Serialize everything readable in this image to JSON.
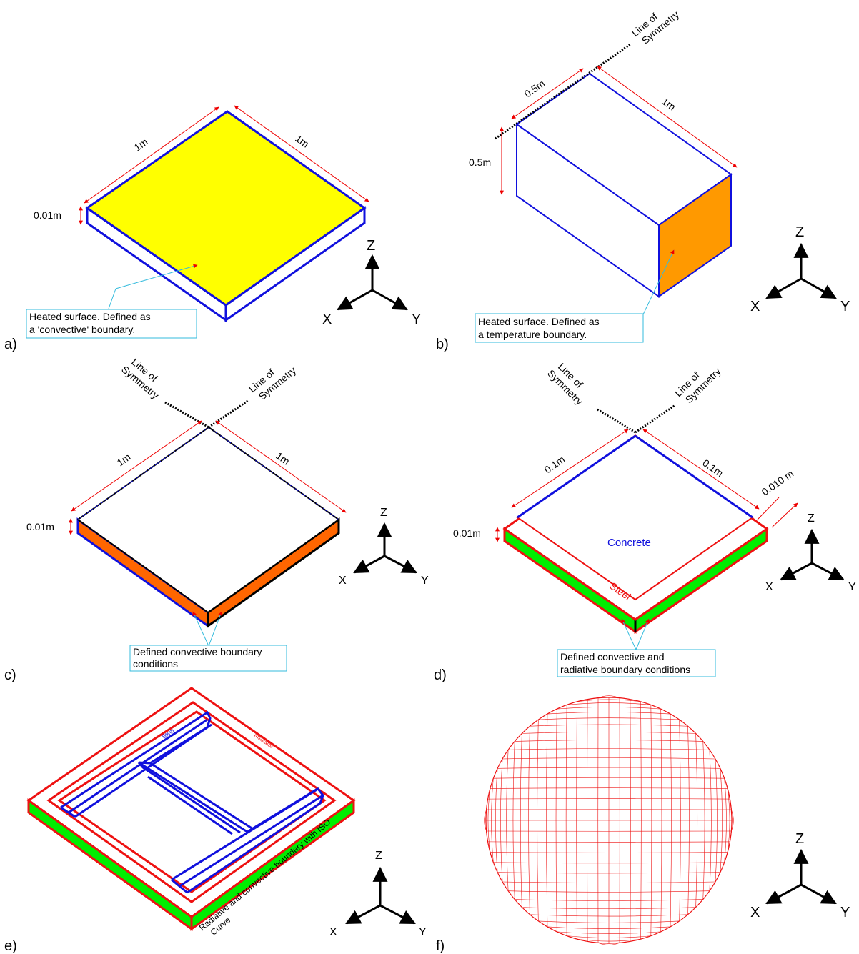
{
  "colors": {
    "edge_blue": "#1010dd",
    "edge_red": "#ee1111",
    "heated_yellow": "#ffff00",
    "heated_orange": "#ff9900",
    "side_orange": "#ff6600",
    "side_green": "#00ee00",
    "callout_border": "#33bbdd",
    "dim_red": "#ee0000"
  },
  "panels": {
    "a": {
      "label": "a)",
      "dim_left": "1m",
      "dim_right": "1m",
      "dim_thickness": "0.01m",
      "callout_line1": "Heated surface. Defined as",
      "callout_line2": "a 'convective' boundary.",
      "axis": {
        "z": "Z",
        "x": "X",
        "y": "Y"
      }
    },
    "b": {
      "label": "b)",
      "dim_top": "0.5m",
      "dim_right": "1m",
      "dim_height": "0.5m",
      "symmetry_line1": "Line of",
      "symmetry_line2": "Symmetry",
      "callout_line1": "Heated surface. Defined as",
      "callout_line2": "a temperature boundary.",
      "axis": {
        "z": "Z",
        "x": "X",
        "y": "Y"
      }
    },
    "c": {
      "label": "c)",
      "dim_left": "1m",
      "dim_right": "1m",
      "dim_thickness": "0.01m",
      "symmetry_left_line1": "Line of",
      "symmetry_left_line2": "Symmetry",
      "symmetry_right_line1": "Line of",
      "symmetry_right_line2": "Symmetry",
      "callout_line1": "Defined convective boundary",
      "callout_line2": "conditions",
      "axis": {
        "z": "Z",
        "x": "X",
        "y": "Y"
      }
    },
    "d": {
      "label": "d)",
      "dim_left": "0.1m",
      "dim_right": "0.1m",
      "dim_steel": "0.010 m",
      "dim_thickness": "0.01m",
      "symmetry_left_line1": "Line of",
      "symmetry_left_line2": "Symmetry",
      "symmetry_right_line1": "Line of",
      "symmetry_right_line2": "Symmetry",
      "concrete_label": "Concrete",
      "steel_label": "Steel",
      "callout_line1": "Defined convective and",
      "callout_line2": "radiative boundary conditions",
      "axis": {
        "z": "Z",
        "x": "X",
        "y": "Y"
      }
    },
    "e": {
      "label": "e)",
      "steel_label": "Steel",
      "insulator_label": "Insulator",
      "boundary_line1": "Radiative and convective boundary with ISO",
      "boundary_line2": "Curve",
      "axis": {
        "z": "Z",
        "x": "X",
        "y": "Y"
      }
    },
    "f": {
      "label": "f)",
      "axis": {
        "z": "Z",
        "x": "X",
        "y": "Y"
      }
    }
  }
}
